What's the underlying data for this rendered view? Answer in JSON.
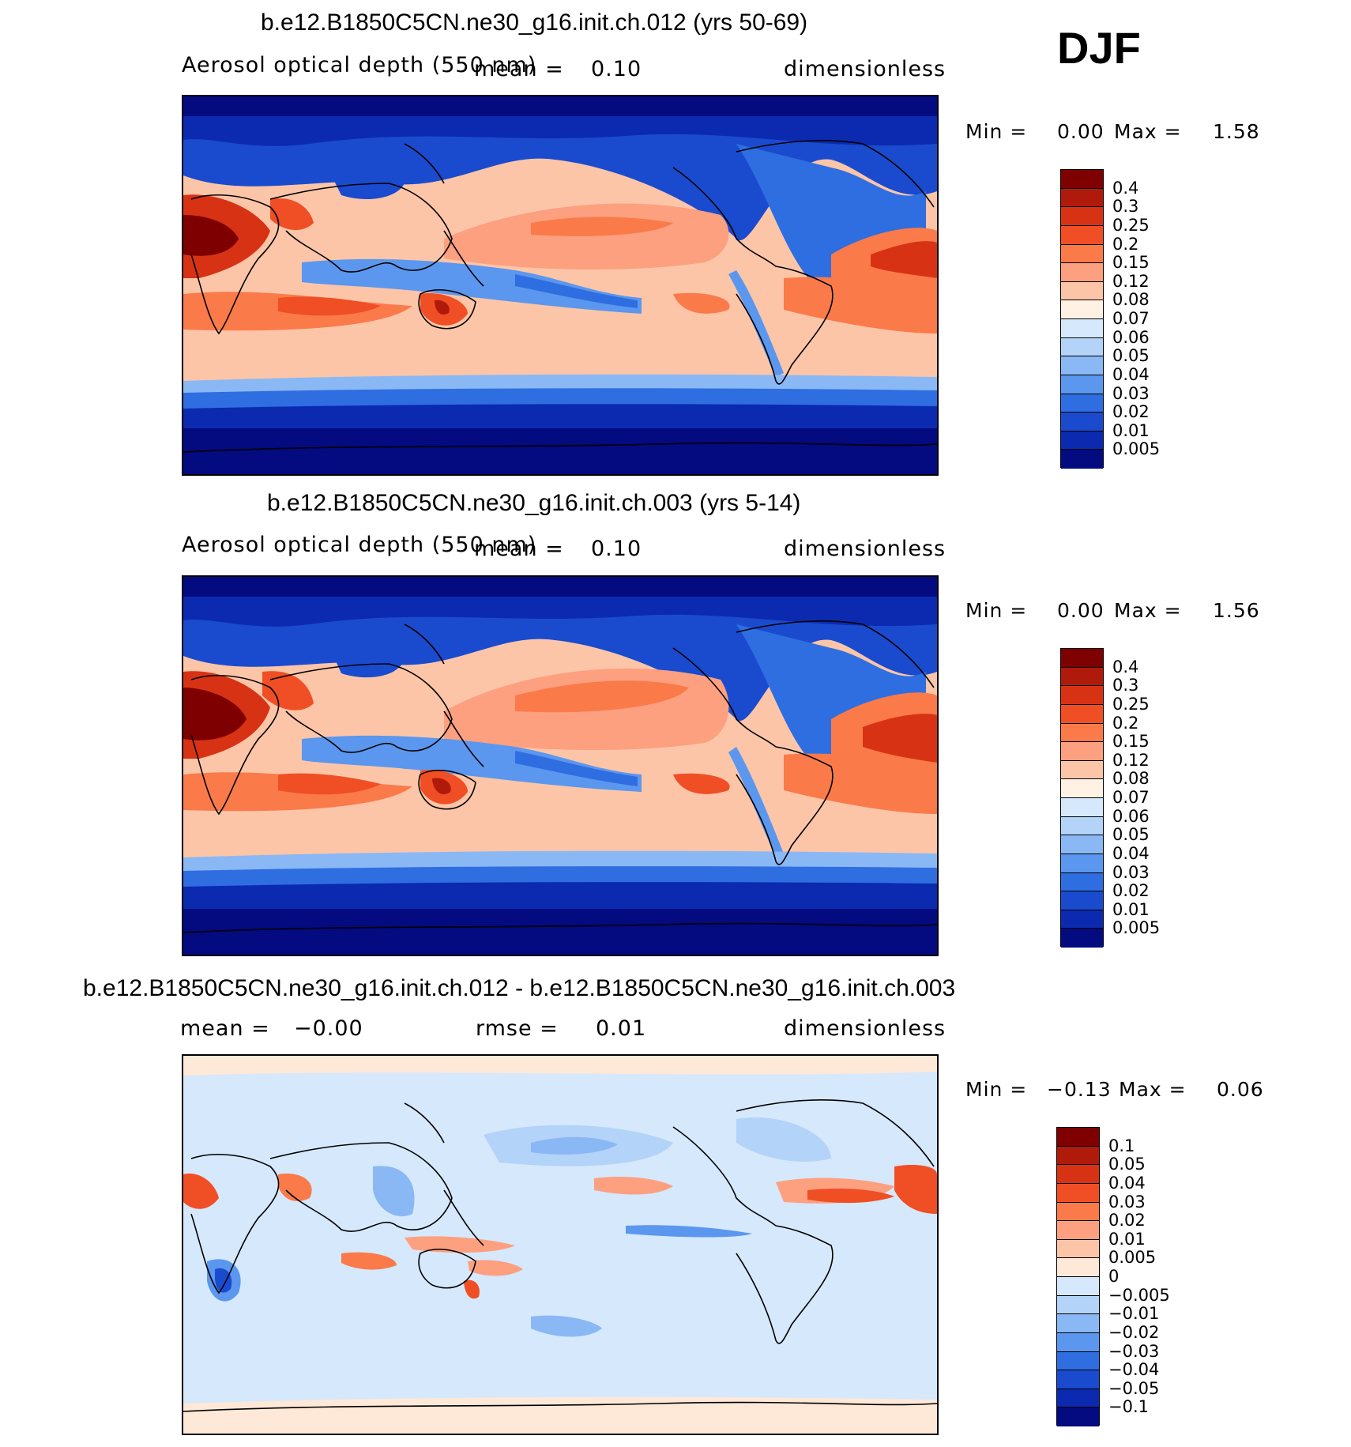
{
  "season": "DJF",
  "units": "dimensionless",
  "panels": [
    {
      "title": "b.e12.B1850C5CN.ne30_g16.init.ch.012 (yrs 50-69)",
      "variable": "Aerosol optical depth (550 nm)",
      "mean_label": "mean =",
      "mean_value": "0.10",
      "units": "dimensionless",
      "min_label": "Min =",
      "min_value": "0.00",
      "max_label": "Max =",
      "max_value": "1.58"
    },
    {
      "title": "b.e12.B1850C5CN.ne30_g16.init.ch.003 (yrs 5-14)",
      "variable": "Aerosol optical depth (550 nm)",
      "mean_label": "mean =",
      "mean_value": "0.10",
      "units": "dimensionless",
      "min_label": "Min =",
      "min_value": "0.00",
      "max_label": "Max =",
      "max_value": "1.56"
    },
    {
      "title": "b.e12.B1850C5CN.ne30_g16.init.ch.012 - b.e12.B1850C5CN.ne30_g16.init.ch.003",
      "mean_label": "mean =",
      "mean_value": "−0.00",
      "rmse_label": "rmse =",
      "rmse_value": "0.01",
      "units": "dimensionless",
      "min_label": "Min =",
      "min_value": "−0.13",
      "max_label": "Max =",
      "max_value": "0.06"
    }
  ],
  "colorbar_abs": {
    "labels": [
      "0.4",
      "0.3",
      "0.25",
      "0.2",
      "0.15",
      "0.12",
      "0.08",
      "0.07",
      "0.06",
      "0.05",
      "0.04",
      "0.03",
      "0.02",
      "0.01",
      "0.005"
    ],
    "colors": [
      "#7f0000",
      "#b01a0a",
      "#d83214",
      "#f04e24",
      "#fb7a4a",
      "#fca080",
      "#fdc5a8",
      "#fff2e4",
      "#d6e8fb",
      "#b4d3f8",
      "#8ab8f5",
      "#5b97ee",
      "#2f6ee0",
      "#1a4bcf",
      "#0c2ab0",
      "#040a80"
    ]
  },
  "colorbar_diff": {
    "labels": [
      "0.1",
      "0.05",
      "0.04",
      "0.03",
      "0.02",
      "0.01",
      "0.005",
      "0",
      "−0.005",
      "−0.01",
      "−0.02",
      "−0.03",
      "−0.04",
      "−0.05",
      "−0.1"
    ],
    "colors": [
      "#7f0000",
      "#b01a0a",
      "#d83214",
      "#f04e24",
      "#fb7a4a",
      "#fca080",
      "#fdc5a8",
      "#fee8d8",
      "#d6e8fb",
      "#b4d3f8",
      "#8ab8f5",
      "#5b97ee",
      "#2f6ee0",
      "#1a4bcf",
      "#0c2ab0",
      "#040a80"
    ]
  }
}
